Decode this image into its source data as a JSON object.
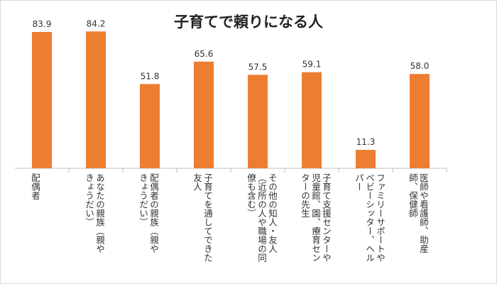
{
  "chart_data": {
    "type": "bar",
    "title": "子育てで頼りになる人",
    "xlabel": "",
    "ylabel": "",
    "ylim": [
      0,
      90
    ],
    "grid": false,
    "legend": "none",
    "bar_color": "#ED7D31",
    "categories": [
      "配偶者",
      "あなたの親族（親やきょうだい）",
      "配偶者の親族（親やきょうだい）",
      "子育てを通してできた友人",
      "その他の知人・友人（近所の人や職場の同僚も含む）",
      "子育て支援センターや児童館、園、療育センターの先生",
      "ファミリーサポートやベビーシッター、ヘルパー",
      "医師や看護師、助産師、保健師"
    ],
    "category_lines": [
      [
        "配偶者"
      ],
      [
        "あなたの親族（親や",
        "きょうだい）"
      ],
      [
        "配偶者の親族（親や",
        "きょうだい）"
      ],
      [
        "子育てを通してできた",
        "友人"
      ],
      [
        "その他の知人・友人",
        "（近所の人や職場の同",
        "僚も含む）"
      ],
      [
        "子育て支援センターや",
        "児童館、園、療育セン",
        "ターの先生"
      ],
      [
        "ファミリーサポートや",
        "ベビーシッター、ヘル",
        "パー"
      ],
      [
        "医師や看護師、助産",
        "師、保健師"
      ]
    ],
    "values": [
      83.9,
      84.2,
      51.8,
      65.6,
      57.5,
      59.1,
      11.3,
      58.0
    ],
    "value_labels": [
      "83.9",
      "84.2",
      "51.8",
      "65.6",
      "57.5",
      "59.1",
      "11.3",
      "58.0"
    ]
  }
}
